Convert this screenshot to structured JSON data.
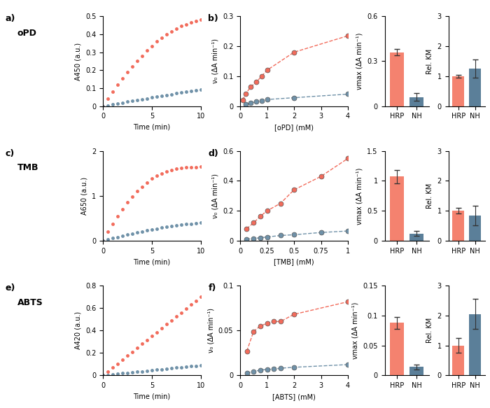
{
  "chart_data": [
    {
      "type": "scatter",
      "annotations": [
        "a)",
        "oPD"
      ],
      "x_label": "Time (min)",
      "y_label": "A450 (a.u.)",
      "x": [
        0,
        0.5,
        1,
        1.5,
        2,
        2.5,
        3,
        3.5,
        4,
        4.5,
        5,
        5.5,
        6,
        6.5,
        7,
        7.5,
        8,
        8.5,
        9,
        9.5,
        10
      ],
      "series": [
        {
          "color": "#f26b5b",
          "marker": "circle",
          "line_style": "none",
          "values": [
            0,
            0.04,
            0.08,
            0.12,
            0.155,
            0.19,
            0.22,
            0.25,
            0.28,
            0.31,
            0.335,
            0.36,
            0.38,
            0.4,
            0.415,
            0.43,
            0.445,
            0.455,
            0.465,
            0.475,
            0.48
          ]
        },
        {
          "color": "#6f91a8",
          "marker": "circle",
          "line_style": "none",
          "values": [
            0,
            0.004,
            0.009,
            0.014,
            0.019,
            0.024,
            0.029,
            0.034,
            0.039,
            0.043,
            0.048,
            0.053,
            0.057,
            0.062,
            0.066,
            0.071,
            0.075,
            0.079,
            0.083,
            0.087,
            0.09
          ]
        }
      ],
      "xlim": [
        0,
        10
      ],
      "xticks": [
        0,
        5,
        10
      ],
      "ylim": [
        0,
        0.5
      ],
      "yticks": [
        0,
        0.1,
        0.2,
        0.3,
        0.4,
        0.5
      ]
    },
    {
      "type": "scatter",
      "annotations": [
        "b)"
      ],
      "x_label": "[oPD] (mM)",
      "y_label": "ν₀ (ΔA min⁻¹)",
      "x": [
        0.1,
        0.2,
        0.4,
        0.6,
        0.8,
        1,
        2,
        4
      ],
      "series": [
        {
          "color": "#f26b5b",
          "marker": "circle",
          "line_style": "dashed",
          "values": [
            0.02,
            0.04,
            0.065,
            0.08,
            0.1,
            0.12,
            0.18,
            0.235
          ]
        },
        {
          "color": "#6f91a8",
          "marker": "circle",
          "line_style": "dashed",
          "values": [
            null,
            0.005,
            0.01,
            0.015,
            0.018,
            0.022,
            0.028,
            0.04
          ]
        }
      ],
      "xlim": [
        0,
        4
      ],
      "xticks": [
        0,
        1,
        2,
        3,
        4
      ],
      "ylim": [
        0,
        0.3
      ],
      "yticks": [
        0,
        0.1,
        0.2,
        0.3
      ]
    },
    {
      "type": "bar",
      "y_label": "νmax (ΔA min⁻¹)",
      "categories": [
        "HRP",
        "NH"
      ],
      "values": [
        0.36,
        0.06
      ],
      "errors": [
        0.02,
        0.025
      ],
      "colors": [
        "#f4826f",
        "#5b7f99"
      ],
      "ylim": [
        0,
        0.6
      ],
      "yticks": [
        0,
        0.3,
        0.6
      ]
    },
    {
      "type": "bar",
      "y_label": "Rel. KM",
      "categories": [
        "HRP",
        "NH"
      ],
      "values": [
        1.0,
        1.25
      ],
      "errors": [
        0.04,
        0.3
      ],
      "colors": [
        "#f4826f",
        "#5b7f99"
      ],
      "ylim": [
        0,
        3
      ],
      "yticks": [
        0,
        1,
        2,
        3
      ]
    },
    {
      "type": "scatter",
      "annotations": [
        "c)",
        "TMB"
      ],
      "x_label": "Time (min)",
      "y_label": "A650 (a.u.)",
      "x": [
        0,
        0.5,
        1,
        1.5,
        2,
        2.5,
        3,
        3.5,
        4,
        4.5,
        5,
        5.5,
        6,
        6.5,
        7,
        7.5,
        8,
        8.5,
        9,
        9.5,
        10
      ],
      "series": [
        {
          "color": "#f26b5b",
          "marker": "circle",
          "line_style": "none",
          "values": [
            0,
            0.2,
            0.38,
            0.55,
            0.7,
            0.85,
            0.98,
            1.1,
            1.2,
            1.3,
            1.38,
            1.45,
            1.5,
            1.55,
            1.58,
            1.6,
            1.62,
            1.63,
            1.64,
            1.64,
            1.65
          ]
        },
        {
          "color": "#6f91a8",
          "marker": "circle",
          "line_style": "none",
          "values": [
            0,
            0.03,
            0.06,
            0.085,
            0.11,
            0.135,
            0.16,
            0.185,
            0.21,
            0.23,
            0.25,
            0.27,
            0.29,
            0.31,
            0.33,
            0.345,
            0.36,
            0.37,
            0.38,
            0.39,
            0.4
          ]
        }
      ],
      "xlim": [
        0,
        10
      ],
      "xticks": [
        0,
        5,
        10
      ],
      "ylim": [
        0,
        2
      ],
      "yticks": [
        0,
        1,
        2
      ]
    },
    {
      "type": "scatter",
      "annotations": [
        "d)"
      ],
      "x_label": "[TMB] (mM)",
      "y_label": "ν₀ (ΔA min⁻¹)",
      "x": [
        0.06,
        0.125,
        0.19,
        0.25,
        0.375,
        0.5,
        0.75,
        1
      ],
      "series": [
        {
          "color": "#f26b5b",
          "marker": "circle",
          "line_style": "dashed",
          "values": [
            0.08,
            0.12,
            0.165,
            0.2,
            0.25,
            0.34,
            0.43,
            0.55
          ]
        },
        {
          "color": "#6f91a8",
          "marker": "circle",
          "line_style": "dashed",
          "values": [
            0.01,
            0.015,
            0.02,
            0.025,
            0.035,
            0.04,
            0.055,
            0.065
          ]
        }
      ],
      "xlim": [
        0,
        1
      ],
      "xticks": [
        0,
        0.25,
        0.5,
        0.75,
        1
      ],
      "ylim": [
        0,
        0.6
      ],
      "yticks": [
        0,
        0.2,
        0.4,
        0.6
      ]
    },
    {
      "type": "bar",
      "y_label": "νmax (ΔA min⁻¹)",
      "categories": [
        "HRP",
        "NH"
      ],
      "values": [
        1.07,
        0.12
      ],
      "errors": [
        0.11,
        0.04
      ],
      "colors": [
        "#f4826f",
        "#5b7f99"
      ],
      "ylim": [
        0,
        1.5
      ],
      "yticks": [
        0,
        0.5,
        1,
        1.5
      ]
    },
    {
      "type": "bar",
      "y_label": "Rel. KM",
      "categories": [
        "HRP",
        "NH"
      ],
      "values": [
        1.0,
        0.85
      ],
      "errors": [
        0.1,
        0.33
      ],
      "colors": [
        "#f4826f",
        "#5b7f99"
      ],
      "ylim": [
        0,
        3
      ],
      "yticks": [
        0,
        1,
        2,
        3
      ]
    },
    {
      "type": "scatter",
      "annotations": [
        "e)",
        "ABTS"
      ],
      "x_label": "Time (min)",
      "y_label": "A420 (a.u.)",
      "x": [
        0,
        0.5,
        1,
        1.5,
        2,
        2.5,
        3,
        3.5,
        4,
        4.5,
        5,
        5.5,
        6,
        6.5,
        7,
        7.5,
        8,
        8.5,
        9,
        9.5,
        10
      ],
      "series": [
        {
          "color": "#f26b5b",
          "marker": "circle",
          "line_style": "none",
          "values": [
            0,
            0.035,
            0.07,
            0.105,
            0.14,
            0.175,
            0.21,
            0.245,
            0.28,
            0.315,
            0.35,
            0.385,
            0.42,
            0.455,
            0.49,
            0.525,
            0.56,
            0.595,
            0.63,
            0.665,
            0.7
          ]
        },
        {
          "color": "#6f91a8",
          "marker": "circle",
          "line_style": "none",
          "values": [
            0,
            0.005,
            0.009,
            0.014,
            0.018,
            0.023,
            0.027,
            0.032,
            0.036,
            0.041,
            0.045,
            0.05,
            0.054,
            0.059,
            0.063,
            0.068,
            0.072,
            0.077,
            0.081,
            0.086,
            0.09
          ]
        }
      ],
      "xlim": [
        0,
        10
      ],
      "xticks": [
        0,
        5,
        10
      ],
      "ylim": [
        0,
        0.8
      ],
      "yticks": [
        0,
        0.2,
        0.4,
        0.6,
        0.8
      ]
    },
    {
      "type": "scatter",
      "annotations": [
        "f)"
      ],
      "x_label": "[ABTS] (mM)",
      "y_label": "ν₀ (ΔA min⁻¹)",
      "x": [
        0.25,
        0.5,
        0.75,
        1,
        1.25,
        1.5,
        2,
        4
      ],
      "series": [
        {
          "color": "#f26b5b",
          "marker": "circle",
          "line_style": "dashed",
          "values": [
            0.027,
            0.049,
            0.055,
            0.058,
            0.06,
            0.06,
            0.068,
            0.082
          ]
        },
        {
          "color": "#6f91a8",
          "marker": "circle",
          "line_style": "dashed",
          "values": [
            0.003,
            0.004,
            0.006,
            0.0065,
            0.007,
            0.008,
            0.009,
            0.012
          ]
        }
      ],
      "xlim": [
        0,
        4
      ],
      "xticks": [
        0,
        1,
        2,
        3,
        4
      ],
      "ylim": [
        0,
        0.1
      ],
      "yticks": [
        0,
        0.05,
        0.1
      ]
    },
    {
      "type": "bar",
      "y_label": "νmax (ΔA min⁻¹)",
      "categories": [
        "HRP",
        "NH"
      ],
      "values": [
        0.088,
        0.014
      ],
      "errors": [
        0.01,
        0.004
      ],
      "colors": [
        "#f4826f",
        "#5b7f99"
      ],
      "ylim": [
        0,
        0.15
      ],
      "yticks": [
        0,
        0.05,
        0.1,
        0.15
      ]
    },
    {
      "type": "bar",
      "y_label": "Rel. KM",
      "categories": [
        "HRP",
        "NH"
      ],
      "values": [
        1.0,
        2.05
      ],
      "errors": [
        0.25,
        0.5
      ],
      "colors": [
        "#f4826f",
        "#5b7f99"
      ],
      "ylim": [
        0,
        3
      ],
      "yticks": [
        0,
        1,
        2,
        3
      ]
    }
  ]
}
